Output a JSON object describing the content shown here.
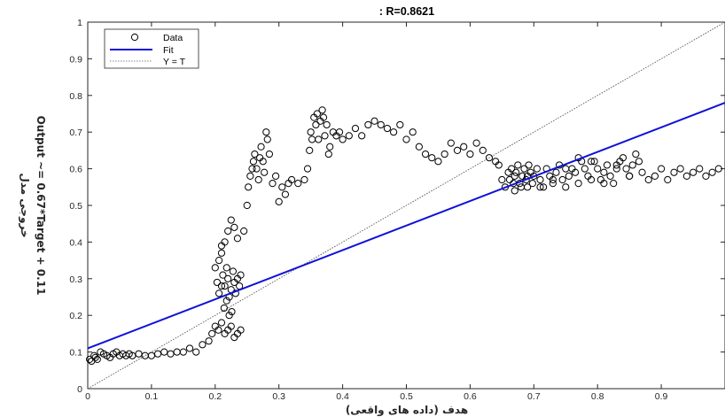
{
  "chart_data": {
    "type": "scatter",
    "title": ": R=0.8621",
    "xlabel": "هدف (داده های واقعی)",
    "ylabel": "Output ~= 0.67*Target + 0.11",
    "ylabel_extra": "خروجی مدل",
    "xlim": [
      0,
      1
    ],
    "ylim": [
      0,
      1
    ],
    "x_ticks": [
      "0",
      "0.1",
      "0.2",
      "0.3",
      "0.4",
      "0.5",
      "0.6",
      "0.7",
      "0.8",
      "0.9"
    ],
    "x_tick_values": [
      0,
      0.1,
      0.2,
      0.3,
      0.4,
      0.5,
      0.6,
      0.7,
      0.8,
      0.9
    ],
    "y_ticks": [
      "0",
      "0.1",
      "0.2",
      "0.3",
      "0.4",
      "0.5",
      "0.6",
      "0.7",
      "0.8",
      "0.9",
      "1"
    ],
    "y_tick_values": [
      0,
      0.1,
      0.2,
      0.3,
      0.4,
      0.5,
      0.6,
      0.7,
      0.8,
      0.9,
      1.0
    ],
    "grid": false,
    "legend_position": "top-left",
    "legend": [
      "Data",
      "Fit",
      "Y = T"
    ],
    "fit": {
      "slope": 0.67,
      "intercept": 0.11,
      "color": "#1010d8"
    },
    "identity_line": {
      "color": "#555555"
    },
    "series": [
      {
        "name": "Data",
        "marker": "circle",
        "color": "#000000",
        "x": [
          0.003,
          0.006,
          0.01,
          0.012,
          0.015,
          0.02,
          0.025,
          0.03,
          0.035,
          0.04,
          0.045,
          0.05,
          0.055,
          0.06,
          0.065,
          0.07,
          0.08,
          0.09,
          0.1,
          0.11,
          0.12,
          0.13,
          0.14,
          0.15,
          0.16,
          0.17,
          0.18,
          0.19,
          0.195,
          0.2,
          0.205,
          0.21,
          0.215,
          0.22,
          0.225,
          0.23,
          0.235,
          0.24,
          0.2,
          0.203,
          0.206,
          0.21,
          0.212,
          0.215,
          0.218,
          0.22,
          0.222,
          0.225,
          0.228,
          0.23,
          0.232,
          0.235,
          0.238,
          0.24,
          0.206,
          0.21,
          0.214,
          0.218,
          0.222,
          0.226,
          0.21,
          0.215,
          0.22,
          0.225,
          0.23,
          0.235,
          0.245,
          0.25,
          0.252,
          0.255,
          0.258,
          0.26,
          0.262,
          0.265,
          0.268,
          0.27,
          0.272,
          0.275,
          0.277,
          0.28,
          0.282,
          0.285,
          0.29,
          0.295,
          0.3,
          0.305,
          0.31,
          0.315,
          0.32,
          0.33,
          0.34,
          0.345,
          0.348,
          0.35,
          0.352,
          0.355,
          0.358,
          0.36,
          0.362,
          0.365,
          0.368,
          0.37,
          0.372,
          0.375,
          0.378,
          0.38,
          0.385,
          0.39,
          0.395,
          0.4,
          0.41,
          0.42,
          0.43,
          0.44,
          0.45,
          0.46,
          0.47,
          0.48,
          0.49,
          0.5,
          0.51,
          0.52,
          0.53,
          0.54,
          0.55,
          0.56,
          0.57,
          0.58,
          0.59,
          0.6,
          0.61,
          0.62,
          0.63,
          0.64,
          0.645,
          0.65,
          0.655,
          0.66,
          0.662,
          0.665,
          0.668,
          0.67,
          0.672,
          0.675,
          0.678,
          0.68,
          0.682,
          0.685,
          0.688,
          0.69,
          0.692,
          0.695,
          0.698,
          0.7,
          0.705,
          0.71,
          0.715,
          0.72,
          0.725,
          0.73,
          0.735,
          0.74,
          0.745,
          0.75,
          0.755,
          0.76,
          0.765,
          0.77,
          0.775,
          0.78,
          0.785,
          0.79,
          0.795,
          0.8,
          0.805,
          0.81,
          0.815,
          0.82,
          0.825,
          0.83,
          0.835,
          0.84,
          0.845,
          0.85,
          0.855,
          0.86,
          0.865,
          0.87,
          0.88,
          0.89,
          0.9,
          0.91,
          0.92,
          0.93,
          0.94,
          0.95,
          0.96,
          0.97,
          0.98,
          0.99,
          0.67,
          0.69,
          0.71,
          0.73,
          0.75,
          0.77,
          0.79,
          0.81,
          0.83,
          0.85
        ],
        "y": [
          0.08,
          0.075,
          0.09,
          0.085,
          0.08,
          0.1,
          0.095,
          0.09,
          0.085,
          0.095,
          0.1,
          0.09,
          0.095,
          0.09,
          0.095,
          0.09,
          0.095,
          0.09,
          0.09,
          0.095,
          0.1,
          0.095,
          0.1,
          0.1,
          0.11,
          0.1,
          0.12,
          0.13,
          0.15,
          0.17,
          0.16,
          0.18,
          0.15,
          0.16,
          0.17,
          0.14,
          0.15,
          0.16,
          0.33,
          0.29,
          0.35,
          0.37,
          0.31,
          0.28,
          0.33,
          0.3,
          0.25,
          0.27,
          0.32,
          0.29,
          0.26,
          0.3,
          0.28,
          0.31,
          0.26,
          0.28,
          0.22,
          0.24,
          0.2,
          0.21,
          0.39,
          0.4,
          0.43,
          0.46,
          0.44,
          0.41,
          0.43,
          0.5,
          0.55,
          0.58,
          0.6,
          0.62,
          0.64,
          0.6,
          0.57,
          0.63,
          0.66,
          0.62,
          0.59,
          0.7,
          0.68,
          0.64,
          0.56,
          0.58,
          0.51,
          0.55,
          0.53,
          0.56,
          0.57,
          0.56,
          0.57,
          0.6,
          0.65,
          0.7,
          0.68,
          0.74,
          0.72,
          0.75,
          0.68,
          0.73,
          0.76,
          0.74,
          0.69,
          0.72,
          0.64,
          0.66,
          0.7,
          0.69,
          0.7,
          0.68,
          0.69,
          0.71,
          0.69,
          0.72,
          0.73,
          0.72,
          0.71,
          0.7,
          0.72,
          0.68,
          0.7,
          0.66,
          0.64,
          0.63,
          0.62,
          0.64,
          0.67,
          0.65,
          0.66,
          0.64,
          0.67,
          0.65,
          0.63,
          0.62,
          0.61,
          0.57,
          0.55,
          0.59,
          0.57,
          0.6,
          0.56,
          0.58,
          0.59,
          0.61,
          0.56,
          0.55,
          0.58,
          0.6,
          0.57,
          0.55,
          0.61,
          0.59,
          0.56,
          0.58,
          0.6,
          0.57,
          0.55,
          0.6,
          0.58,
          0.56,
          0.59,
          0.61,
          0.57,
          0.55,
          0.58,
          0.6,
          0.59,
          0.56,
          0.62,
          0.6,
          0.58,
          0.57,
          0.62,
          0.6,
          0.57,
          0.59,
          0.61,
          0.58,
          0.56,
          0.6,
          0.62,
          0.63,
          0.6,
          0.58,
          0.61,
          0.64,
          0.62,
          0.59,
          0.57,
          0.58,
          0.6,
          0.57,
          0.59,
          0.6,
          0.58,
          0.59,
          0.6,
          0.58,
          0.59,
          0.6,
          0.54,
          0.58,
          0.55,
          0.57,
          0.6,
          0.63,
          0.62,
          0.56,
          0.61,
          0.58
        ]
      }
    ]
  }
}
